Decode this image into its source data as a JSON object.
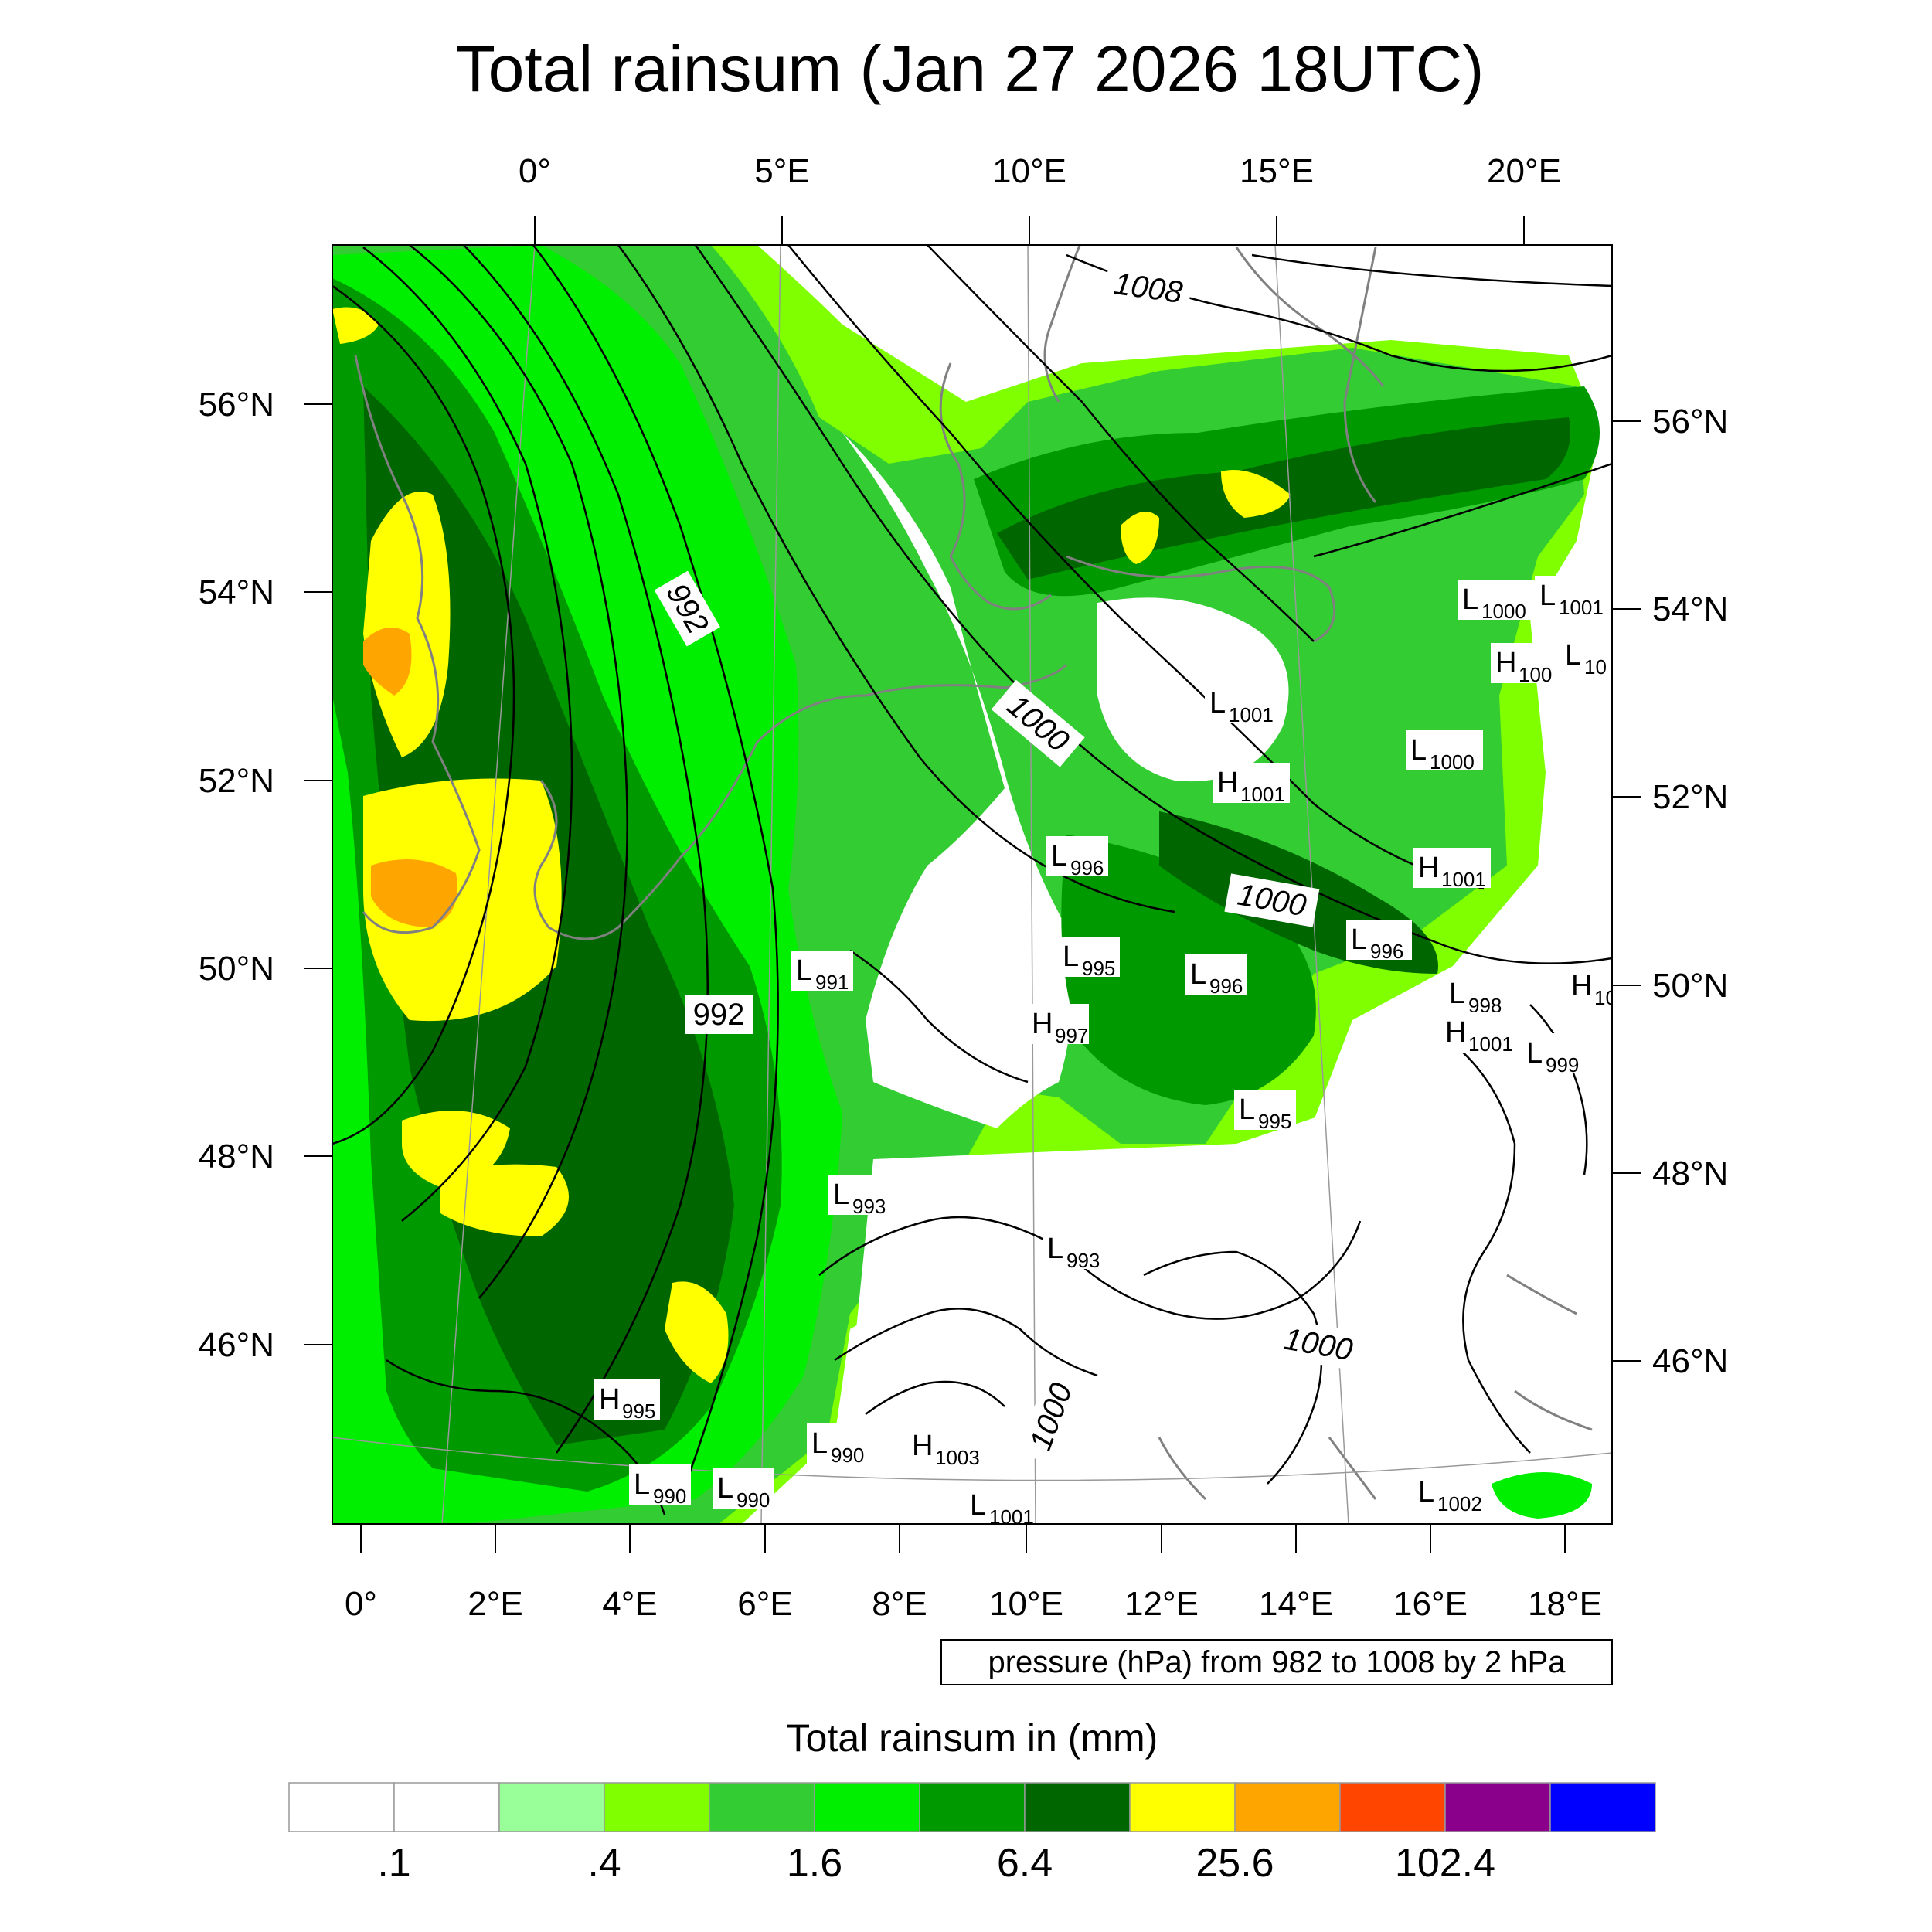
{
  "title": "Total rainsum (Jan 27 2026 18UTC)",
  "top_lon_labels": [
    "0°",
    "5°E",
    "10°E",
    "15°E",
    "20°E"
  ],
  "bottom_lon_labels": [
    "0°",
    "2°E",
    "4°E",
    "6°E",
    "8°E",
    "10°E",
    "12°E",
    "14°E",
    "16°E",
    "18°E"
  ],
  "left_lat_labels": [
    "56°N",
    "54°N",
    "52°N",
    "50°N",
    "48°N",
    "46°N"
  ],
  "right_lat_labels": [
    "56°N",
    "54°N",
    "52°N",
    "50°N",
    "48°N",
    "46°N"
  ],
  "contour_labels": [
    "1008",
    "992",
    "1000",
    "1000",
    "992",
    "1000",
    "1000"
  ],
  "pressure_centers": [
    {
      "type": "L",
      "value": "1000"
    },
    {
      "type": "L",
      "value": "1001"
    },
    {
      "type": "H",
      "value": "100"
    },
    {
      "type": "L",
      "value": "10"
    },
    {
      "type": "L",
      "value": "1001"
    },
    {
      "type": "L",
      "value": "1000"
    },
    {
      "type": "H",
      "value": "1001"
    },
    {
      "type": "L",
      "value": "996"
    },
    {
      "type": "H",
      "value": "1001"
    },
    {
      "type": "L",
      "value": "996"
    },
    {
      "type": "L",
      "value": "991"
    },
    {
      "type": "L",
      "value": "995"
    },
    {
      "type": "L",
      "value": "996"
    },
    {
      "type": "H",
      "value": "997"
    },
    {
      "type": "L",
      "value": "998"
    },
    {
      "type": "H",
      "value": "1001"
    },
    {
      "type": "L",
      "value": "999"
    },
    {
      "type": "H",
      "value": "10"
    },
    {
      "type": "L",
      "value": "995"
    },
    {
      "type": "L",
      "value": "993"
    },
    {
      "type": "L",
      "value": "993"
    },
    {
      "type": "H",
      "value": "995"
    },
    {
      "type": "L",
      "value": "990"
    },
    {
      "type": "H",
      "value": "1003"
    },
    {
      "type": "L",
      "value": "990"
    },
    {
      "type": "L",
      "value": "990"
    },
    {
      "type": "L",
      "value": "1001"
    },
    {
      "type": "L",
      "value": "1002"
    }
  ],
  "pressure_note": "pressure (hPa) from 982 to 1008 by 2 hPa",
  "colorbar": {
    "title": "Total rainsum in (mm)",
    "colors": [
      "#ffffff",
      "#ffffff",
      "#99ff99",
      "#80ff00",
      "#33cc33",
      "#00ee00",
      "#009900",
      "#006600",
      "#ffff00",
      "#ffa500",
      "#ff4500",
      "#8b008b",
      "#0000ff"
    ],
    "labels": [
      ".1",
      ".4",
      "1.6",
      "6.4",
      "25.6",
      "102.4"
    ]
  }
}
